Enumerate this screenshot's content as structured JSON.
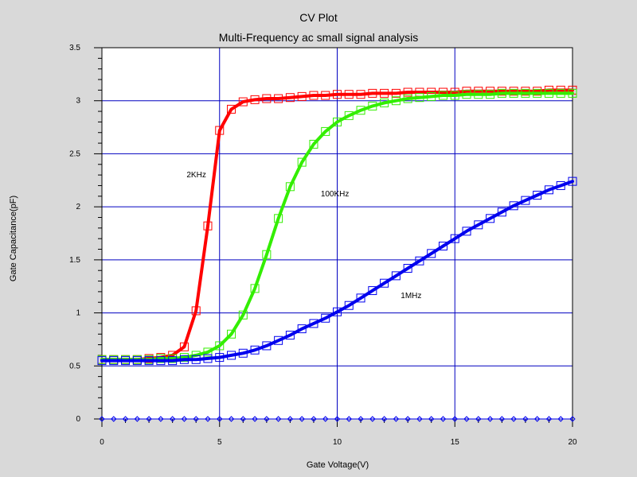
{
  "chart_data": {
    "type": "line",
    "title": "CV Plot",
    "subtitle": "Multi-Frequency ac small signal analysis",
    "xlabel": "Gate Voltage(V)",
    "ylabel": "Gate Capacitance(pF)",
    "xlim": [
      0,
      20
    ],
    "ylim": [
      0,
      3.5
    ],
    "xticks": [
      0,
      5,
      10,
      15,
      20
    ],
    "yticks": [
      0,
      0.5,
      1,
      1.5,
      2,
      2.5,
      3,
      3.5
    ],
    "xtick_labels": [
      "0",
      "5",
      "10",
      "15",
      "20"
    ],
    "ytick_labels": [
      "0",
      "0.5",
      "1",
      "1.5",
      "2",
      "2.5",
      "3",
      "3.5"
    ],
    "grid": true,
    "background": "#d9d9d9",
    "plot_background": "#ffffff",
    "grid_color": "#0000c0",
    "series": [
      {
        "name": "2KHz",
        "color": "#ff0000",
        "marker": "square",
        "label_at": [
          3.6,
          2.28
        ],
        "x": [
          0,
          0.5,
          1,
          1.5,
          2,
          2.5,
          3,
          3.5,
          4,
          4.5,
          5,
          5.5,
          6,
          6.5,
          7,
          7.5,
          8,
          8.5,
          9,
          9.5,
          10,
          10.5,
          11,
          11.5,
          12,
          12.5,
          13,
          13.5,
          14,
          14.5,
          15,
          15.5,
          16,
          16.5,
          17,
          17.5,
          18,
          18.5,
          19,
          19.5,
          20
        ],
        "y": [
          0.56,
          0.56,
          0.56,
          0.56,
          0.57,
          0.58,
          0.6,
          0.68,
          1.02,
          1.82,
          2.72,
          2.92,
          2.99,
          3.01,
          3.02,
          3.02,
          3.03,
          3.04,
          3.05,
          3.05,
          3.06,
          3.06,
          3.06,
          3.07,
          3.07,
          3.07,
          3.08,
          3.08,
          3.08,
          3.08,
          3.08,
          3.09,
          3.09,
          3.09,
          3.09,
          3.09,
          3.09,
          3.09,
          3.1,
          3.1,
          3.1
        ]
      },
      {
        "name": "100KHz",
        "color": "#33ee00",
        "marker": "square",
        "label_at": [
          9.3,
          2.1
        ],
        "x": [
          0,
          0.5,
          1,
          1.5,
          2,
          2.5,
          3,
          3.5,
          4,
          4.5,
          5,
          5.5,
          6,
          6.5,
          7,
          7.5,
          8,
          8.5,
          9,
          9.5,
          10,
          10.5,
          11,
          11.5,
          12,
          12.5,
          13,
          13.5,
          14,
          14.5,
          15,
          15.5,
          16,
          16.5,
          17,
          17.5,
          18,
          18.5,
          19,
          19.5,
          20
        ],
        "y": [
          0.56,
          0.56,
          0.56,
          0.56,
          0.56,
          0.57,
          0.57,
          0.58,
          0.6,
          0.63,
          0.69,
          0.8,
          0.98,
          1.23,
          1.55,
          1.89,
          2.19,
          2.42,
          2.59,
          2.71,
          2.8,
          2.86,
          2.91,
          2.95,
          2.98,
          3.0,
          3.02,
          3.03,
          3.04,
          3.05,
          3.05,
          3.06,
          3.06,
          3.06,
          3.07,
          3.07,
          3.07,
          3.07,
          3.07,
          3.07,
          3.07
        ]
      },
      {
        "name": "1MHz",
        "color": "#0000ee",
        "marker": "square",
        "label_at": [
          12.7,
          1.14
        ],
        "x": [
          0,
          0.5,
          1,
          1.5,
          2,
          2.5,
          3,
          3.5,
          4,
          4.5,
          5,
          5.5,
          6,
          6.5,
          7,
          7.5,
          8,
          8.5,
          9,
          9.5,
          10,
          10.5,
          11,
          11.5,
          12,
          12.5,
          13,
          13.5,
          14,
          14.5,
          15,
          15.5,
          16,
          16.5,
          17,
          17.5,
          18,
          18.5,
          19,
          19.5,
          20
        ],
        "y": [
          0.55,
          0.55,
          0.55,
          0.55,
          0.55,
          0.55,
          0.55,
          0.56,
          0.56,
          0.57,
          0.58,
          0.6,
          0.62,
          0.65,
          0.69,
          0.74,
          0.79,
          0.85,
          0.9,
          0.95,
          1.01,
          1.07,
          1.14,
          1.21,
          1.28,
          1.35,
          1.42,
          1.49,
          1.56,
          1.63,
          1.7,
          1.77,
          1.83,
          1.89,
          1.95,
          2.01,
          2.06,
          2.11,
          2.16,
          2.2,
          2.24
        ]
      },
      {
        "name": "",
        "color": "#0000ee",
        "marker": "diamond",
        "x": [
          0,
          0.5,
          1,
          1.5,
          2,
          2.5,
          3,
          3.5,
          4,
          4.5,
          5,
          5.5,
          6,
          6.5,
          7,
          7.5,
          8,
          8.5,
          9,
          9.5,
          10,
          10.5,
          11,
          11.5,
          12,
          12.5,
          13,
          13.5,
          14,
          14.5,
          15,
          15.5,
          16,
          16.5,
          17,
          17.5,
          18,
          18.5,
          19,
          19.5,
          20
        ],
        "y": [
          0,
          0,
          0,
          0,
          0,
          0,
          0,
          0,
          0,
          0,
          0,
          0,
          0,
          0,
          0,
          0,
          0,
          0,
          0,
          0,
          0,
          0,
          0,
          0,
          0,
          0,
          0,
          0,
          0,
          0,
          0,
          0,
          0,
          0,
          0,
          0,
          0,
          0,
          0,
          0,
          0
        ]
      }
    ]
  }
}
